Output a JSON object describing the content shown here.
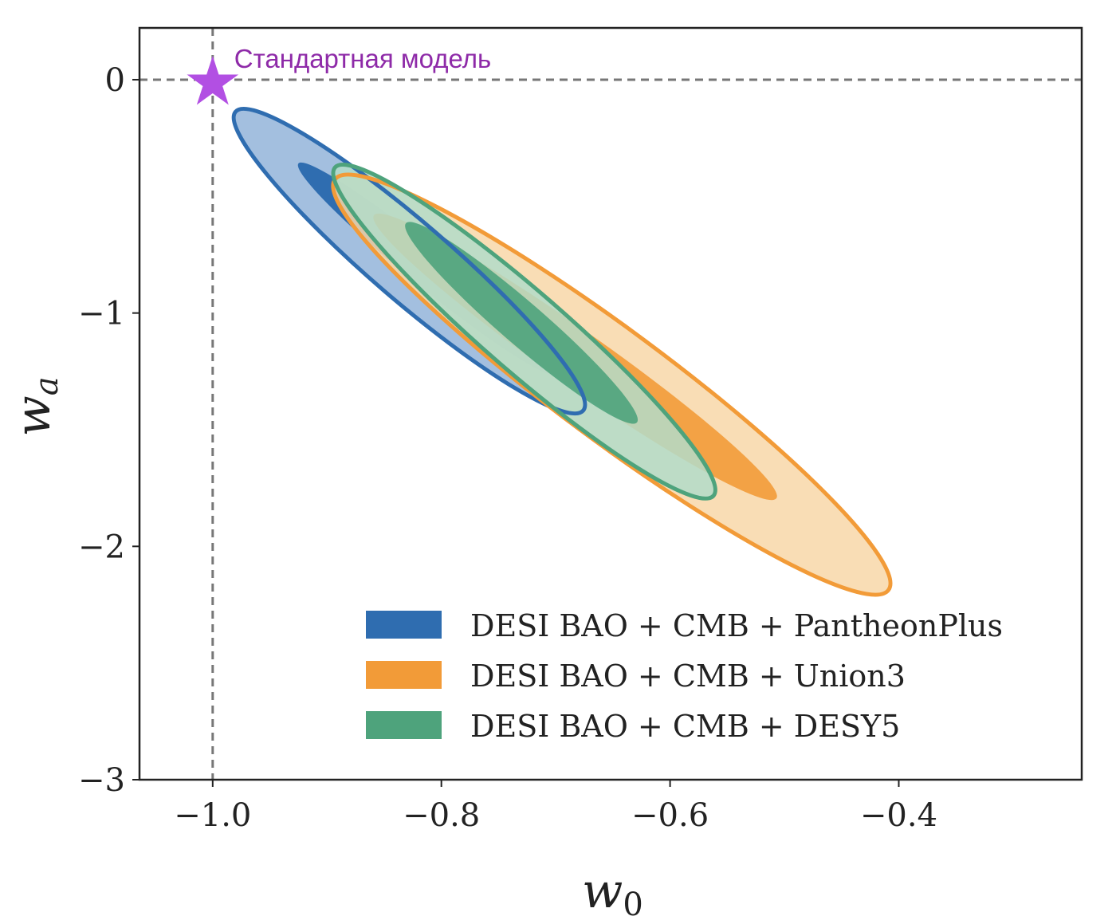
{
  "chart_data": {
    "type": "contour",
    "title": "",
    "xlabel": "w0",
    "ylabel": "wa",
    "xlim": [
      -1.064,
      -0.24
    ],
    "ylim": [
      -3.0,
      0.222
    ],
    "xticks": [
      -1.0,
      -0.8,
      -0.6,
      -0.4
    ],
    "xtick_labels": [
      "−1.0",
      "−0.8",
      "−0.6",
      "−0.4"
    ],
    "yticks": [
      0,
      -1,
      -2,
      -3
    ],
    "ytick_labels": [
      "0",
      "−1",
      "−2",
      "−3"
    ],
    "grid": false,
    "reference_lines": {
      "w0": -1.0,
      "wa": 0.0
    },
    "annotation": {
      "text": "Стандартная модель",
      "point": [
        -1.0,
        0.0
      ],
      "color": "#8e2aa8",
      "marker_color": "#b24fe3"
    },
    "legend_position": "bottom-right",
    "series": [
      {
        "name": "DESI BAO + CMB + PantheonPlus",
        "color": "#2f6db0",
        "light": "#a3bfdf",
        "outer": {
          "p1": [
            -0.98,
            -0.137
          ],
          "p2": [
            -0.676,
            -1.418
          ],
          "width_ratio": 0.17
        },
        "inner": {
          "p1": [
            -0.925,
            -0.359
          ],
          "p2": [
            -0.698,
            -1.264
          ],
          "width_ratio": 0.11
        }
      },
      {
        "name": "DESI BAO + CMB + Union3",
        "color": "#f29b38",
        "light": "#f8d7a8",
        "outer": {
          "p1": [
            -0.893,
            -0.427
          ],
          "p2": [
            -0.409,
            -2.187
          ],
          "width_ratio": 0.16
        },
        "inner": {
          "p1": [
            -0.859,
            -0.581
          ],
          "p2": [
            -0.507,
            -1.794
          ],
          "width_ratio": 0.11
        }
      },
      {
        "name": "DESI BAO + CMB + DESY5",
        "color": "#4ea37c",
        "light": "#b3dcc9",
        "outer": {
          "p1": [
            -0.893,
            -0.376
          ],
          "p2": [
            -0.562,
            -1.783
          ],
          "width_ratio": 0.16
        },
        "inner": {
          "p1": [
            -0.831,
            -0.615
          ],
          "p2": [
            -0.629,
            -1.469
          ],
          "width_ratio": 0.14
        }
      }
    ]
  }
}
